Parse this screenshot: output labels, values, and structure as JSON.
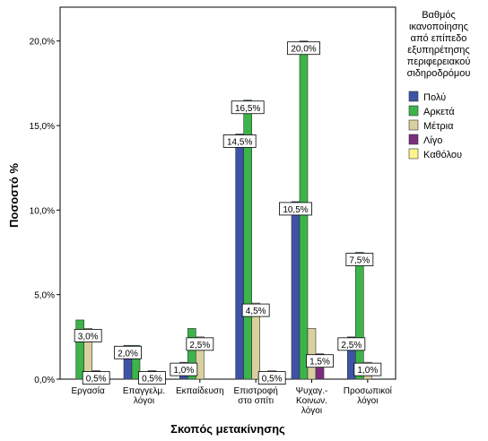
{
  "chart_data": {
    "type": "bar",
    "title": "",
    "xlabel": "Σκοπός μετακίνησης",
    "ylabel": "Ποσοστό %",
    "ylim": [
      0,
      22
    ],
    "yticks": [
      {
        "value": 0,
        "label": "0,0%"
      },
      {
        "value": 5,
        "label": "5,0%"
      },
      {
        "value": 10,
        "label": "10,0%"
      },
      {
        "value": 15,
        "label": "15,0%"
      },
      {
        "value": 20,
        "label": "20,0%"
      }
    ],
    "categories": [
      [
        "Εργασία"
      ],
      [
        "Επαγγελμ.",
        "λόγοι"
      ],
      [
        "Εκπαίδευση"
      ],
      [
        "Επιστροφή",
        "στο σπίτι"
      ],
      [
        "Ψυχαγ.-",
        "Κοινων.",
        "λόγοι"
      ],
      [
        "Προσωπικοί",
        "λόγοι"
      ]
    ],
    "legend_title": [
      "Βαθμός",
      "ικανοποίησης",
      "από επίπεδο",
      "εξυπηρέτησης",
      "περιφερειακού",
      "σιδηροδρόμου"
    ],
    "legend_position": "right",
    "grid": false,
    "series": [
      {
        "name": "Πολύ",
        "color": "#3d53a6",
        "values": [
          0,
          2.0,
          1.0,
          14.5,
          10.5,
          2.5
        ]
      },
      {
        "name": "Αρκετά",
        "color": "#3cb44a",
        "values": [
          3.5,
          2.0,
          3.0,
          16.5,
          20.0,
          7.5
        ]
      },
      {
        "name": "Μέτρια",
        "color": "#d9d0a0",
        "values": [
          3.0,
          0,
          2.5,
          4.5,
          3.0,
          1.0
        ]
      },
      {
        "name": "Λίγο",
        "color": "#7b2e7d",
        "values": [
          0.5,
          0.5,
          0,
          0,
          1.5,
          0
        ]
      },
      {
        "name": "Καθόλου",
        "color": "#fbf48a",
        "values": [
          0,
          0,
          0,
          0.5,
          0,
          0
        ]
      }
    ],
    "data_labels": [
      {
        "category": 0,
        "series": 2,
        "text": "3,0%"
      },
      {
        "category": 0,
        "series": 3,
        "text": "0,5%"
      },
      {
        "category": 1,
        "series": 0,
        "text": "2,0%"
      },
      {
        "category": 1,
        "series": 3,
        "text": "0,5%"
      },
      {
        "category": 2,
        "series": 0,
        "text": "1,0%"
      },
      {
        "category": 2,
        "series": 2,
        "text": "2,5%"
      },
      {
        "category": 3,
        "series": 1,
        "text": "16,5%"
      },
      {
        "category": 3,
        "series": 0,
        "text": "14,5%"
      },
      {
        "category": 3,
        "series": 2,
        "text": "4,5%"
      },
      {
        "category": 3,
        "series": 4,
        "text": "0,5%"
      },
      {
        "category": 4,
        "series": 1,
        "text": "20,0%"
      },
      {
        "category": 4,
        "series": 0,
        "text": "10,5%"
      },
      {
        "category": 4,
        "series": 3,
        "text": "1,5%"
      },
      {
        "category": 5,
        "series": 1,
        "text": "7,5%"
      },
      {
        "category": 5,
        "series": 0,
        "text": "2,5%"
      },
      {
        "category": 5,
        "series": 2,
        "text": "1,0%"
      }
    ]
  }
}
